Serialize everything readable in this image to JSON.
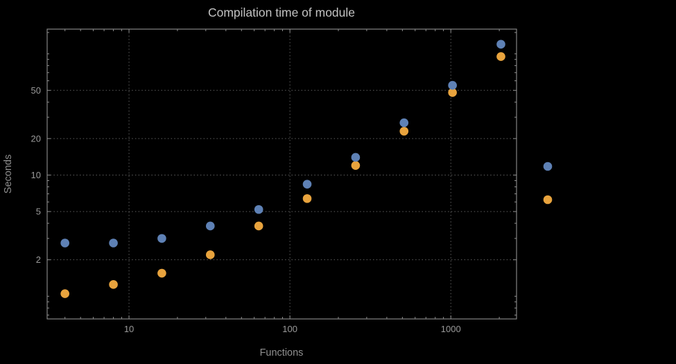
{
  "page": {
    "background": "#000000"
  },
  "chart_data": {
    "type": "scatter",
    "title": "Compilation time of module",
    "xlabel": "Functions",
    "ylabel": "Seconds",
    "xscale": "log",
    "yscale": "log",
    "xlim": [
      3.1,
      2560
    ],
    "ylim": [
      0.65,
      160
    ],
    "grid": "dotted",
    "x": [
      4,
      8,
      16,
      32,
      64,
      128,
      256,
      512,
      1024,
      2048
    ],
    "series": [
      {
        "name": "blue",
        "color": "#5e81b5",
        "values": [
          2.75,
          2.75,
          3.0,
          3.8,
          5.2,
          8.4,
          14,
          27,
          55,
          120
        ]
      },
      {
        "name": "orange",
        "color": "#e8a33d",
        "values": [
          1.05,
          1.25,
          1.55,
          2.2,
          3.8,
          6.4,
          12,
          23,
          48,
          95
        ]
      }
    ],
    "x_ticks": {
      "major": [
        10,
        100,
        1000
      ],
      "labels": [
        "10",
        "100",
        "1000"
      ],
      "minor": [
        4,
        5,
        6,
        7,
        8,
        9,
        20,
        30,
        40,
        50,
        60,
        70,
        80,
        90,
        200,
        300,
        400,
        500,
        600,
        700,
        800,
        900,
        2000
      ]
    },
    "y_ticks": {
      "major": [
        2,
        5,
        10,
        20,
        50
      ],
      "labels": [
        "2",
        "5",
        "10",
        "20",
        "50"
      ],
      "minor": [
        0.7,
        0.8,
        0.9,
        1,
        3,
        4,
        6,
        7,
        8,
        9,
        30,
        40,
        60,
        70,
        80,
        90,
        100,
        150
      ]
    },
    "gridlines": {
      "x": [
        10,
        100,
        1000
      ],
      "y": [
        2,
        5,
        10,
        20,
        50
      ],
      "color": "#5f5f5f"
    },
    "colors": {
      "frame": "#909090",
      "title_text": "#c2c2c2",
      "axis_text": "#8f8f8f",
      "tick_text": "#9a9a9a"
    },
    "legend": {
      "position": "right",
      "markers": [
        {
          "color": "#5e81b5"
        },
        {
          "color": "#e8a33d"
        }
      ]
    }
  }
}
